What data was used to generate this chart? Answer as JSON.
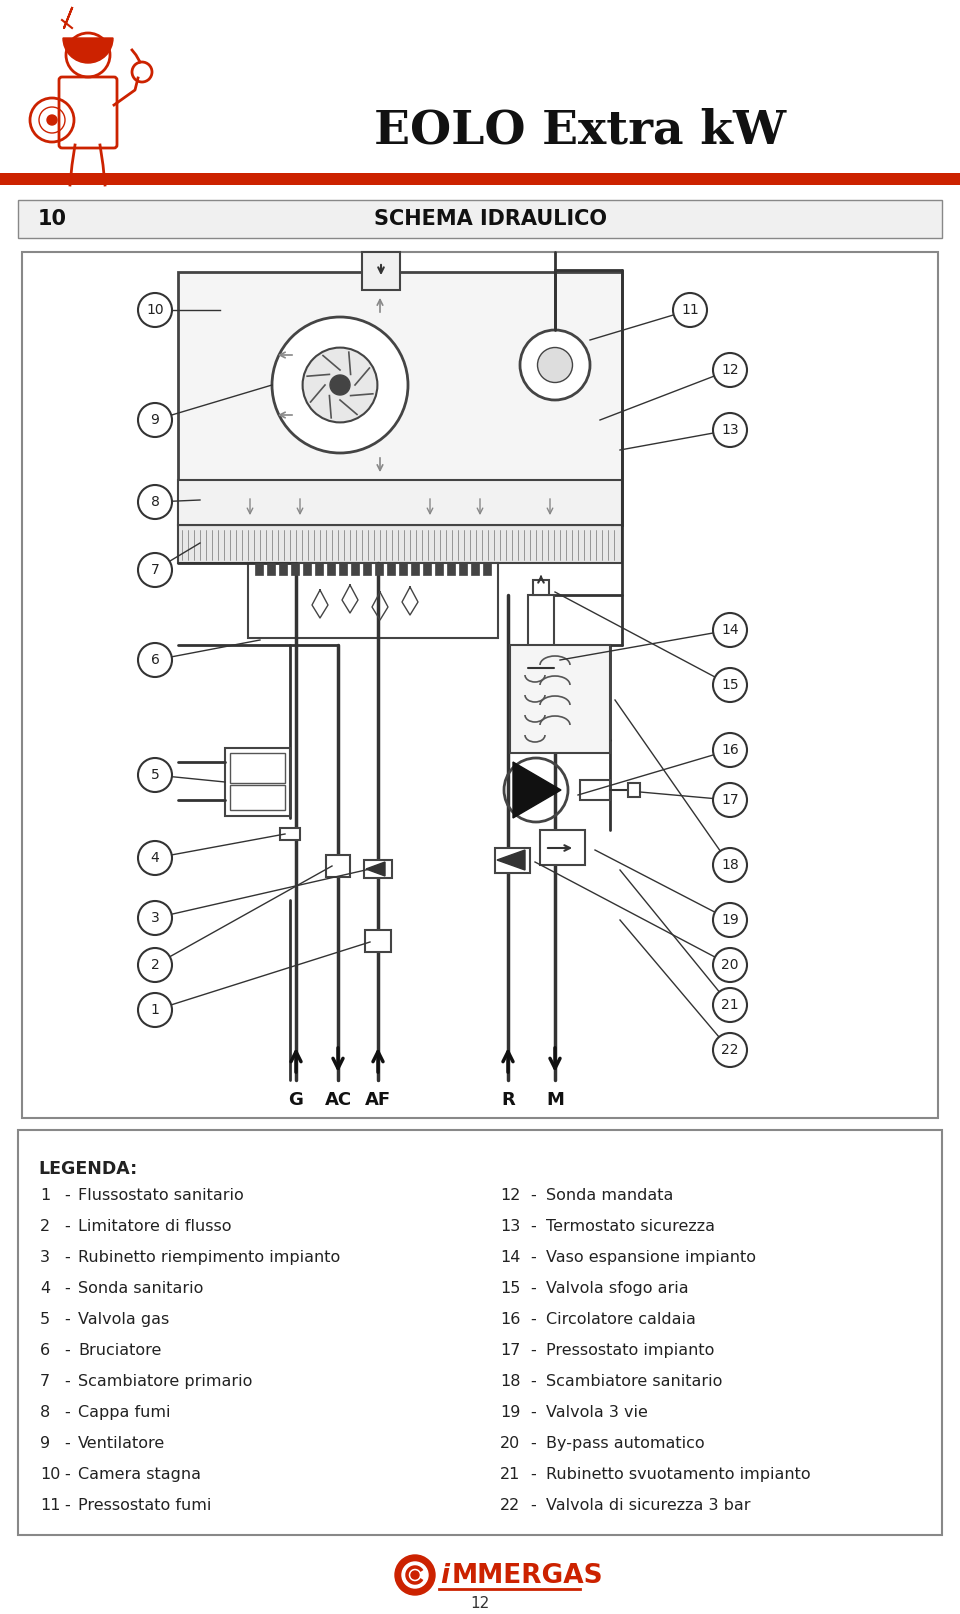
{
  "title": "EOLO Extra kW",
  "section_number": "10",
  "section_title": "SCHEMA IDRAULICO",
  "page_number": "12",
  "bg_color": "#ffffff",
  "header_bar_color": "#cc2200",
  "legend_title": "LEGENDA:",
  "legend_left": [
    [
      "1",
      "Flussostato sanitario"
    ],
    [
      "2",
      "Limitatore di flusso"
    ],
    [
      "3",
      "Rubinetto riempimento impianto"
    ],
    [
      "4",
      "Sonda sanitario"
    ],
    [
      "5",
      "Valvola gas"
    ],
    [
      "6",
      "Bruciatore"
    ],
    [
      "7",
      "Scambiatore primario"
    ],
    [
      "8",
      "Cappa fumi"
    ],
    [
      "9",
      "Ventilatore"
    ],
    [
      "10",
      "Camera stagna"
    ],
    [
      "11",
      "Pressostato fumi"
    ]
  ],
  "legend_right": [
    [
      "12",
      "Sonda mandata"
    ],
    [
      "13",
      "Termostato sicurezza"
    ],
    [
      "14",
      "Vaso espansione impianto"
    ],
    [
      "15",
      "Valvola sfogo aria"
    ],
    [
      "16",
      "Circolatore caldaia"
    ],
    [
      "17",
      "Pressostato impianto"
    ],
    [
      "18",
      "Scambiatore sanitario"
    ],
    [
      "19",
      "Valvola 3 vie"
    ],
    [
      "20",
      "By-pass automatico"
    ],
    [
      "21",
      "Rubinetto svuotamento impianto"
    ],
    [
      "22",
      "Valvola di sicurezza 3 bar"
    ]
  ],
  "immergas_color": "#cc2200",
  "diagram_border_color": "#666666",
  "line_color": "#333333"
}
